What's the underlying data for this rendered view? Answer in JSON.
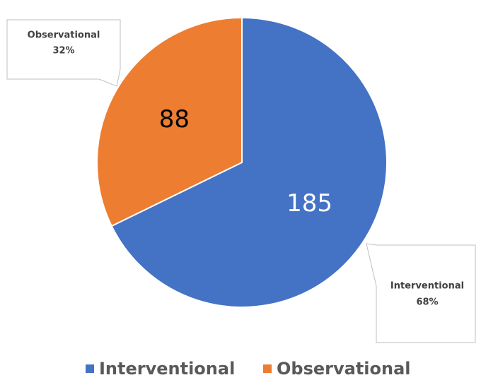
{
  "chart_data": {
    "type": "pie",
    "categories": [
      "Interventional",
      "Observational"
    ],
    "values": [
      185,
      88
    ],
    "percent_labels": [
      "68%",
      "32%"
    ],
    "colors": [
      "#4472c4",
      "#ed7d31"
    ],
    "label_colors": [
      "#ffffff",
      "#000000"
    ],
    "legend": "bottom"
  }
}
